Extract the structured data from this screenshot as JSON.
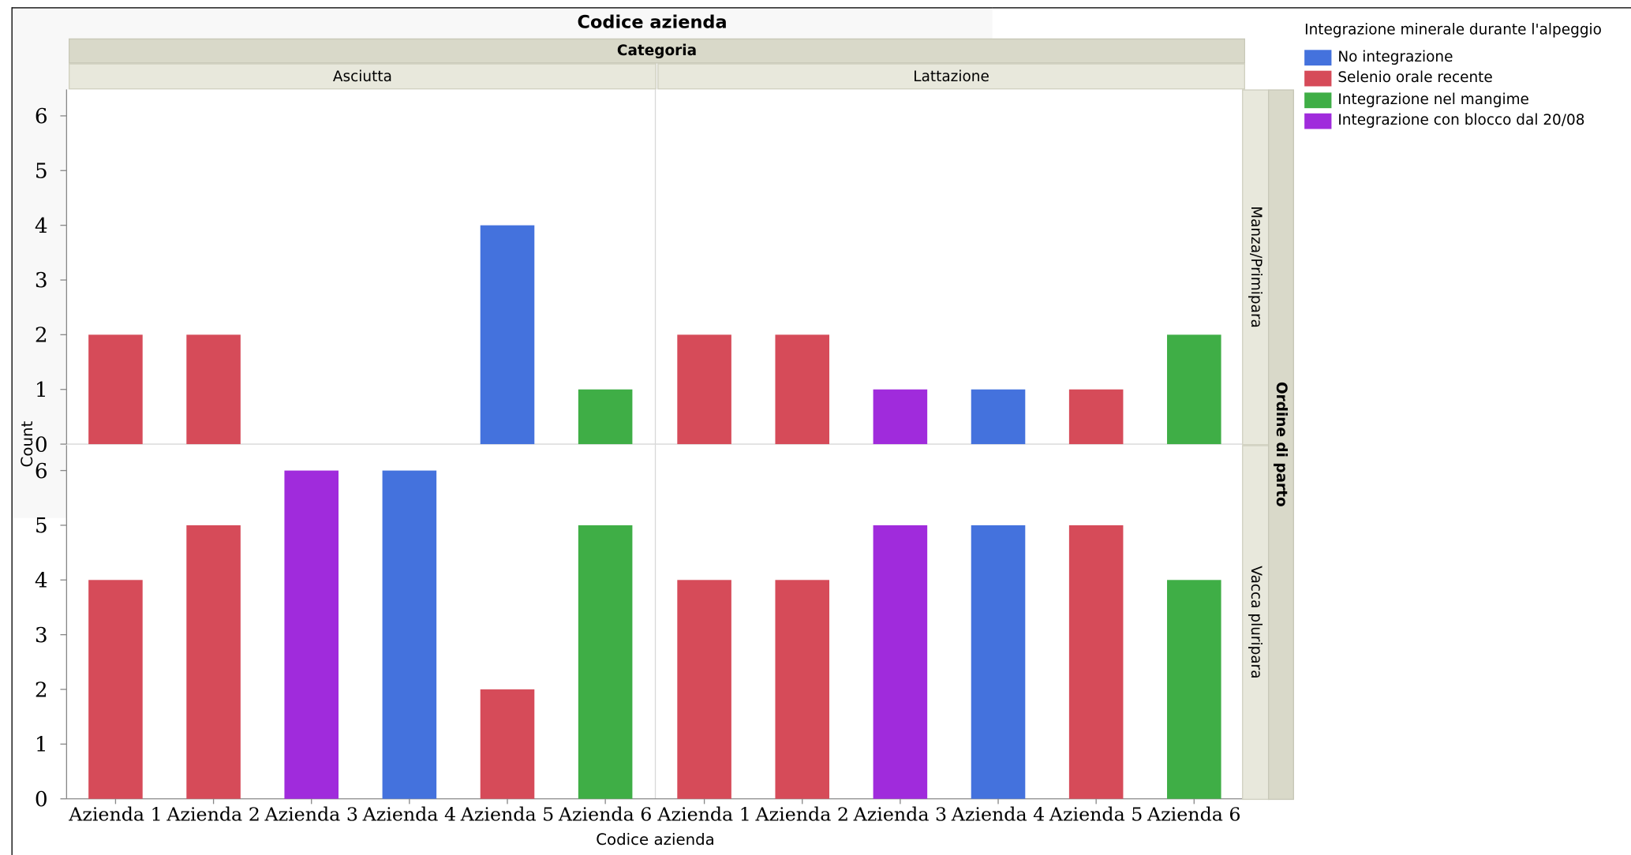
{
  "chart_data": {
    "type": "bar",
    "title": "Codice azienda",
    "column_facet_title": "Categoria",
    "column_facets": [
      "Asciutta",
      "Lattazione"
    ],
    "row_facet_title": "Ordine di parto",
    "row_facets": [
      "Manza/Primipara",
      "Vacca pluripara"
    ],
    "categories": [
      "Azienda 1",
      "Azienda 2",
      "Azienda 3",
      "Azienda 4",
      "Azienda 5",
      "Azienda 6"
    ],
    "xlabel": "Codice azienda",
    "ylabel": "Count",
    "ylim": [
      0,
      6.5
    ],
    "yticks": [
      0,
      1,
      2,
      3,
      4,
      5,
      6
    ],
    "legend": {
      "title": "Integrazione minerale durante l'alpeggio",
      "placement": "top-right",
      "items": [
        {
          "name": "No integrazione",
          "color": "#4472dd"
        },
        {
          "name": "Selenio orale recente",
          "color": "#d64b59"
        },
        {
          "name": "Integrazione nel mangime",
          "color": "#3fae46"
        },
        {
          "name": "Integrazione con blocco dal 20/08",
          "color": "#a02bdc"
        }
      ]
    },
    "panels": [
      {
        "row": "Manza/Primipara",
        "column": "Asciutta",
        "bars": [
          {
            "category": "Azienda 1",
            "value": 2,
            "group": "Selenio orale recente"
          },
          {
            "category": "Azienda 2",
            "value": 2,
            "group": "Selenio orale recente"
          },
          {
            "category": "Azienda 3",
            "value": 0,
            "group": ""
          },
          {
            "category": "Azienda 4",
            "value": 0,
            "group": ""
          },
          {
            "category": "Azienda 5",
            "value": 4,
            "group": "No integrazione"
          },
          {
            "category": "Azienda 6",
            "value": 1,
            "group": "Integrazione nel mangime"
          }
        ]
      },
      {
        "row": "Manza/Primipara",
        "column": "Lattazione",
        "bars": [
          {
            "category": "Azienda 1",
            "value": 2,
            "group": "Selenio orale recente"
          },
          {
            "category": "Azienda 2",
            "value": 2,
            "group": "Selenio orale recente"
          },
          {
            "category": "Azienda 3",
            "value": 1,
            "group": "Integrazione con blocco dal 20/08"
          },
          {
            "category": "Azienda 4",
            "value": 1,
            "group": "No integrazione"
          },
          {
            "category": "Azienda 5",
            "value": 1,
            "group": "Selenio orale recente"
          },
          {
            "category": "Azienda 6",
            "value": 2,
            "group": "Integrazione nel mangime"
          }
        ]
      },
      {
        "row": "Vacca pluripara",
        "column": "Asciutta",
        "bars": [
          {
            "category": "Azienda 1",
            "value": 4,
            "group": "Selenio orale recente"
          },
          {
            "category": "Azienda 2",
            "value": 5,
            "group": "Selenio orale recente"
          },
          {
            "category": "Azienda 3",
            "value": 6,
            "group": "Integrazione con blocco dal 20/08"
          },
          {
            "category": "Azienda 4",
            "value": 6,
            "group": "No integrazione"
          },
          {
            "category": "Azienda 5",
            "value": 2,
            "group": "Selenio orale recente"
          },
          {
            "category": "Azienda 6",
            "value": 5,
            "group": "Integrazione nel mangime"
          }
        ]
      },
      {
        "row": "Vacca pluripara",
        "column": "Lattazione",
        "bars": [
          {
            "category": "Azienda 1",
            "value": 4,
            "group": "Selenio orale recente"
          },
          {
            "category": "Azienda 2",
            "value": 4,
            "group": "Selenio orale recente"
          },
          {
            "category": "Azienda 3",
            "value": 5,
            "group": "Integrazione con blocco dal 20/08"
          },
          {
            "category": "Azienda 4",
            "value": 5,
            "group": "No integrazione"
          },
          {
            "category": "Azienda 5",
            "value": 5,
            "group": "Selenio orale recente"
          },
          {
            "category": "Azienda 6",
            "value": 4,
            "group": "Integrazione nel mangime"
          }
        ]
      }
    ],
    "grid": false
  }
}
